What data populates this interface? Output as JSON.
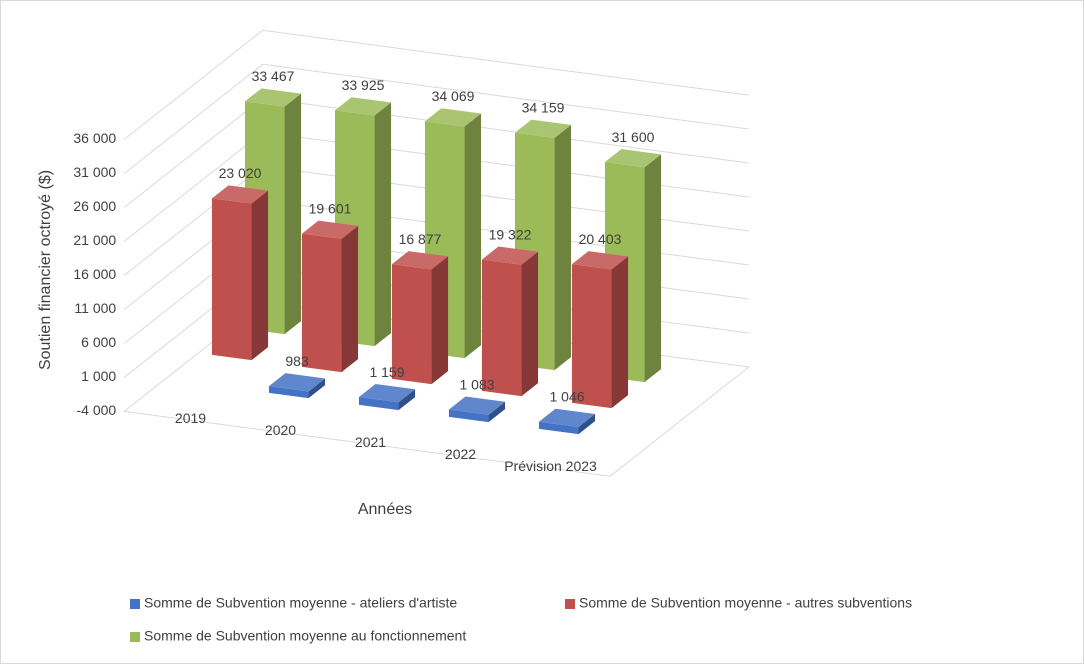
{
  "chart_data": {
    "type": "bar3d",
    "ylabel": "Soutien financier octroyé ($)",
    "xlabel": "Années",
    "categories": [
      "2019",
      "2020",
      "2021",
      "2022",
      "Prévision 2023"
    ],
    "series": [
      {
        "name": "Somme de Subvention moyenne - ateliers d'artiste",
        "color": "#4472c4",
        "values": [
          null,
          983,
          1159,
          1083,
          1046
        ],
        "value_labels": [
          null,
          "983",
          "1 159",
          "1 083",
          "1 046"
        ]
      },
      {
        "name": "Somme de Subvention moyenne - autres subventions",
        "color": "#c0504d",
        "values": [
          23020,
          19601,
          16877,
          19322,
          20403
        ],
        "value_labels": [
          "23 020",
          "19 601",
          "16 877",
          "19 322",
          "20 403"
        ]
      },
      {
        "name": "Somme de Subvention moyenne au fonctionnement",
        "color": "#9bbb59",
        "values": [
          33467,
          33925,
          34069,
          34159,
          31600
        ],
        "value_labels": [
          "33 467",
          "33 925",
          "34 069",
          "34 159",
          "31 600"
        ]
      }
    ],
    "ylim": [
      -4000,
      36000
    ],
    "yticks": [
      {
        "value": -4000,
        "label": "-4 000"
      },
      {
        "value": 1000,
        "label": "1 000"
      },
      {
        "value": 6000,
        "label": "6 000"
      },
      {
        "value": 11000,
        "label": "11 000"
      },
      {
        "value": 16000,
        "label": "16 000"
      },
      {
        "value": 21000,
        "label": "21 000"
      },
      {
        "value": 26000,
        "label": "26 000"
      },
      {
        "value": 31000,
        "label": "31 000"
      },
      {
        "value": 36000,
        "label": "36 000"
      }
    ],
    "grid": true,
    "legend": "bottom"
  }
}
